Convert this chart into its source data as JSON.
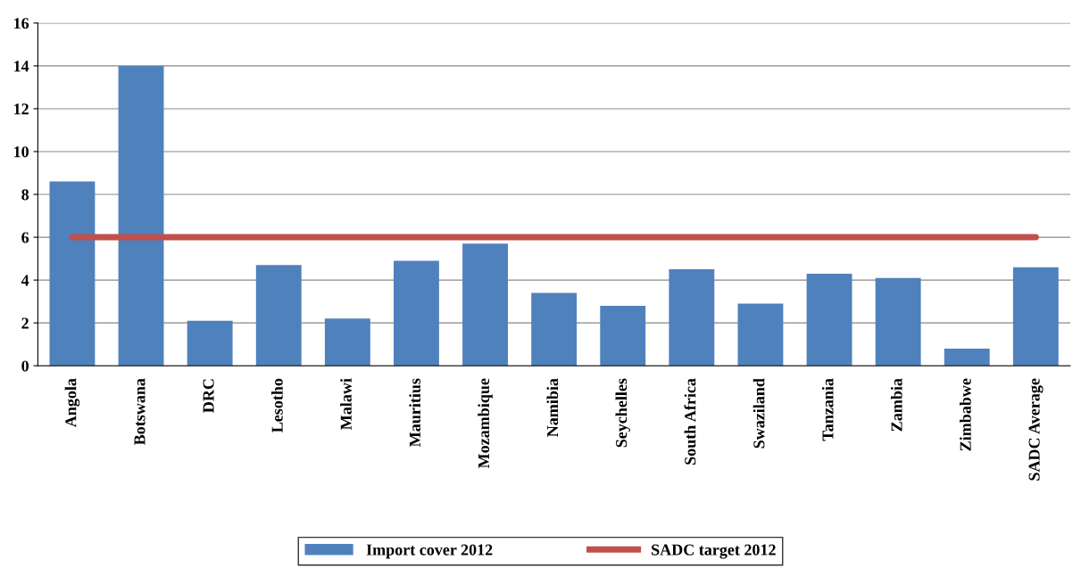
{
  "chart_data": {
    "type": "bar",
    "categories": [
      "Angola",
      "Botswana",
      "DRC",
      "Lesotho",
      "Malawi",
      "Mauritius",
      "Mozambique",
      "Namibia",
      "Seychelles",
      "South Africa",
      "Swaziland",
      "Tanzania",
      "Zambia",
      "Zimbabwe",
      "SADC Average"
    ],
    "series": [
      {
        "name": "Import cover 2012",
        "color": "#4f81bd",
        "values": [
          8.6,
          14.0,
          2.1,
          4.7,
          2.2,
          4.9,
          5.7,
          3.4,
          2.8,
          4.5,
          2.9,
          4.3,
          4.1,
          0.8,
          4.6
        ]
      },
      {
        "name": "SADC target 2012",
        "type": "line",
        "color": "#c0504d",
        "values": [
          6,
          6,
          6,
          6,
          6,
          6,
          6,
          6,
          6,
          6,
          6,
          6,
          6,
          6,
          6
        ]
      }
    ],
    "ylim": [
      0,
      16
    ],
    "yticks": [
      0,
      2,
      4,
      6,
      8,
      10,
      12,
      14,
      16
    ],
    "grid": "y",
    "legend": "bottom"
  }
}
